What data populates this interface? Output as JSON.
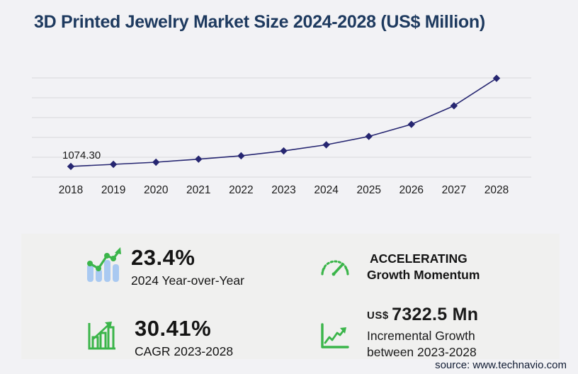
{
  "title": "3D Printed Jewelry Market Size 2024-2028 (US$ Million)",
  "source": "source: www.technavio.com",
  "colors": {
    "page_bg": "#f2f2f5",
    "panel_bg": "#f0f0ef",
    "title_navy": "#1e3a5f",
    "line_navy": "#262671",
    "gridline": "#d8d8da",
    "green_accent": "#3bb54a",
    "light_blue": "#a9c9f1",
    "text_black": "#1a1a1a"
  },
  "chart_data": {
    "type": "line",
    "title": "3D Printed Jewelry Market Size 2024-2028 (US$ Million)",
    "categories": [
      "2018",
      "2019",
      "2020",
      "2021",
      "2022",
      "2023",
      "2024",
      "2025",
      "2026",
      "2027",
      "2028"
    ],
    "values": [
      1074.3,
      1285,
      1500,
      1810,
      2145,
      2640,
      3258,
      4100,
      5320,
      7190,
      9962
    ],
    "first_point_label": "1074.30",
    "ylim": [
      0,
      10000
    ],
    "gridline_step": 2000,
    "grid": "horizontal",
    "marker": "diamond",
    "legend": "none",
    "xlabel": "",
    "ylabel": ""
  },
  "stats": [
    {
      "icon": "bar-chart-trend-icon",
      "value": "23.4%",
      "label": "2024 Year-over-Year"
    },
    {
      "icon": "speedometer-icon",
      "value": "ACCELERATING",
      "label": "Growth Momentum"
    },
    {
      "icon": "growth-bars-icon",
      "value": "30.41%",
      "label": "CAGR 2023-2028"
    },
    {
      "icon": "line-graph-icon",
      "currency": "US$",
      "value": "7322.5 Mn",
      "label": "Incremental Growth",
      "label2": "between 2023-2028"
    }
  ]
}
